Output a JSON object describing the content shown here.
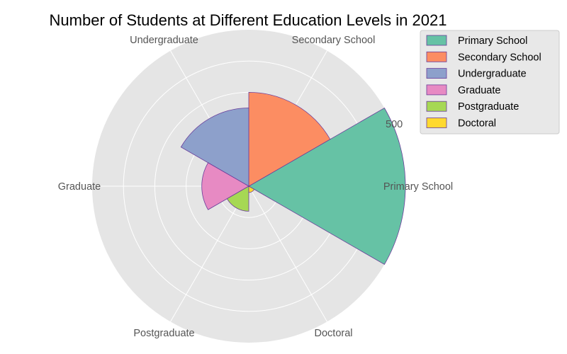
{
  "chart_data": {
    "type": "polar-bar",
    "title": "Number of Students at Different Education Levels in 2021",
    "categories": [
      "Primary School",
      "Secondary School",
      "Undergraduate",
      "Graduate",
      "Postgraduate",
      "Doctoral"
    ],
    "values": [
      500,
      300,
      250,
      150,
      80,
      20
    ],
    "colors": [
      "#66c2a5",
      "#fc8d62",
      "#8da0cb",
      "#e78ac3",
      "#a6d854",
      "#ffd92f"
    ],
    "edge_color": "#6a3d9a",
    "rlim": [
      0,
      500
    ],
    "radial_tick_labels": [
      "500"
    ],
    "grid": true,
    "legend": {
      "placement": "top-right",
      "entries": [
        "Primary School",
        "Secondary School",
        "Undergraduate",
        "Graduate",
        "Postgraduate",
        "Doctoral"
      ]
    }
  }
}
